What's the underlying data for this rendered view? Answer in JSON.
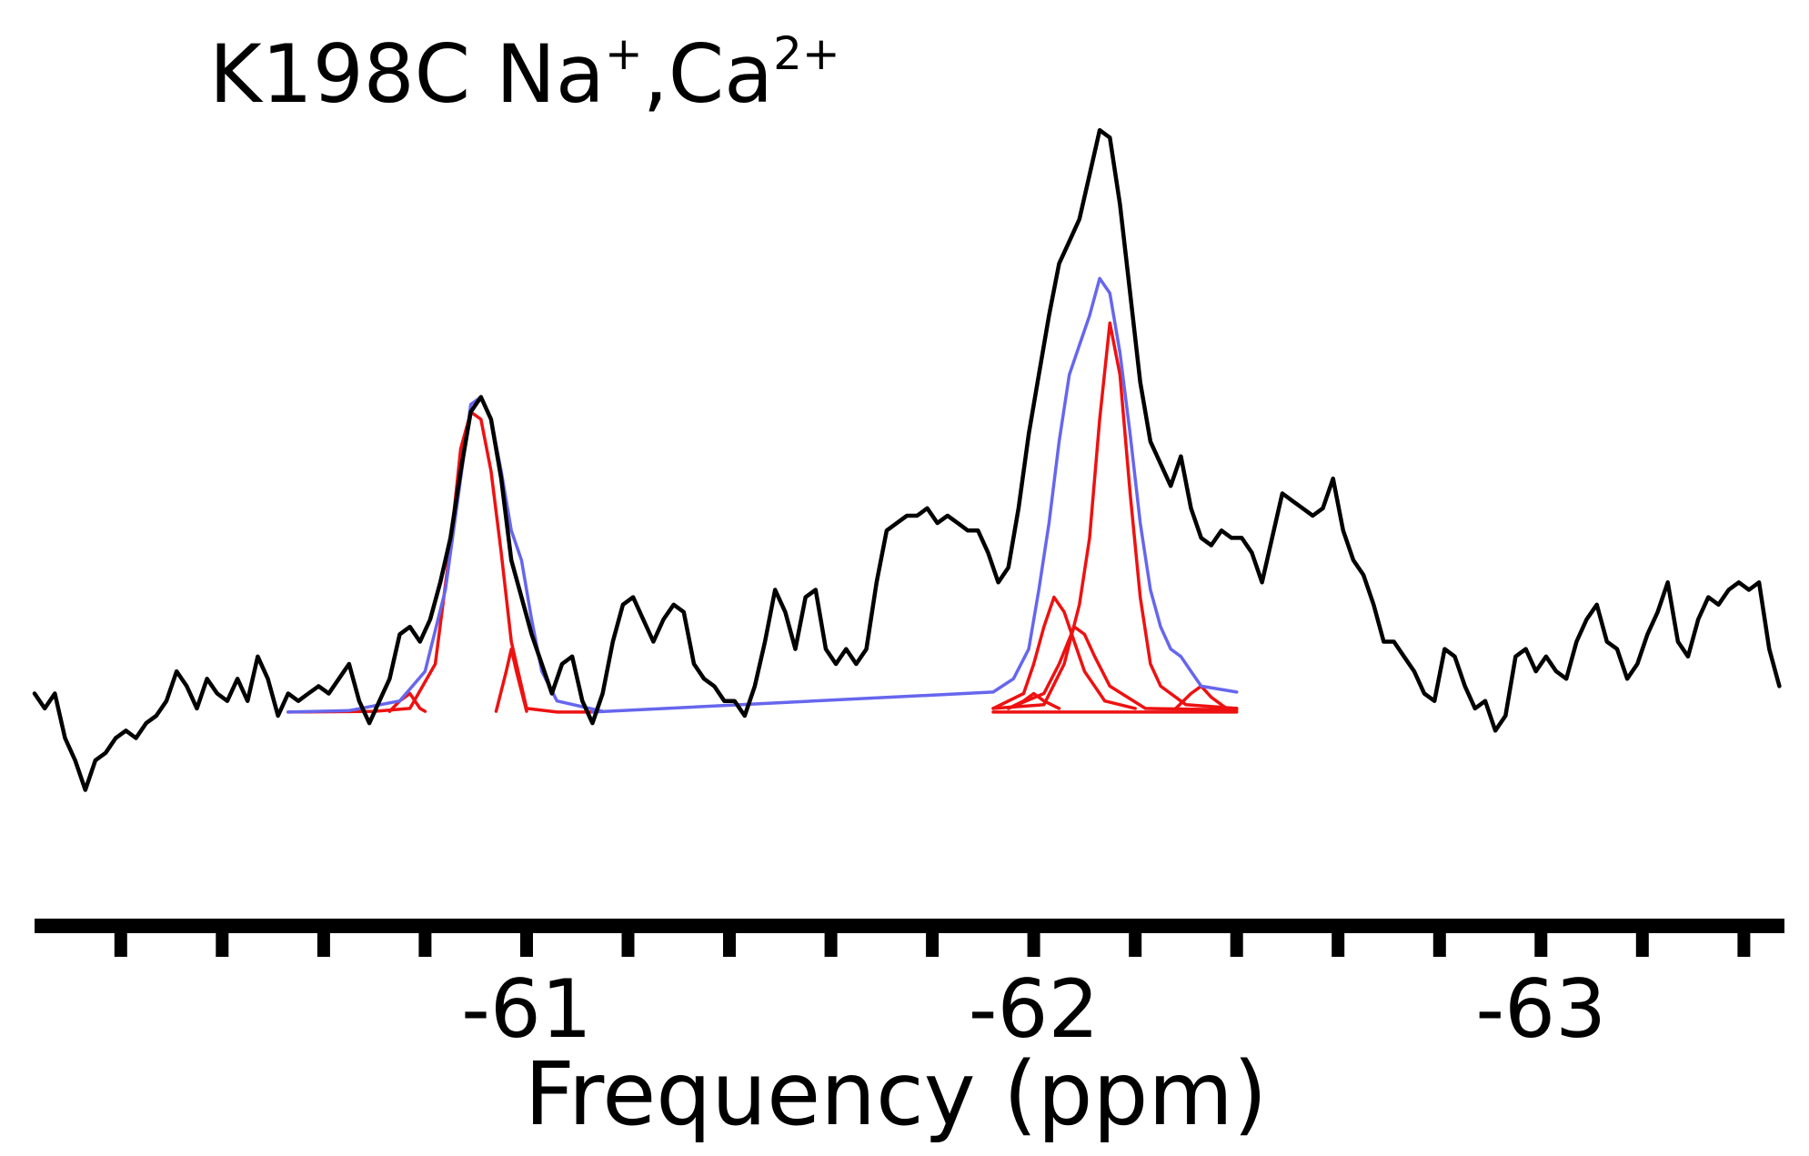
{
  "title": {
    "main": "K198C Na",
    "sup1": "+",
    "sep": ",Ca",
    "sup2": "2+"
  },
  "chart_data": {
    "type": "line",
    "xlabel": "Frequency (ppm)",
    "ylabel": "",
    "x_reversed": true,
    "xlim": [
      -60.03,
      -63.48
    ],
    "ylim": [
      0,
      1
    ],
    "x_ticks": [
      -61,
      -62,
      -63
    ],
    "x_tick_labels": [
      "-61",
      "-62",
      "-63"
    ],
    "x_minor_step": 0.2,
    "grid": false,
    "colors": {
      "spectrum": "#000000",
      "fit_sum": "#6666ee",
      "fit_component": "#ee1111"
    },
    "series": [
      {
        "role": "spectrum",
        "points": [
          [
            -60.03,
            0.23
          ],
          [
            -60.05,
            0.21
          ],
          [
            -60.07,
            0.23
          ],
          [
            -60.09,
            0.17
          ],
          [
            -60.11,
            0.14
          ],
          [
            -60.13,
            0.1
          ],
          [
            -60.15,
            0.14
          ],
          [
            -60.17,
            0.15
          ],
          [
            -60.19,
            0.17
          ],
          [
            -60.21,
            0.18
          ],
          [
            -60.23,
            0.17
          ],
          [
            -60.25,
            0.19
          ],
          [
            -60.27,
            0.2
          ],
          [
            -60.29,
            0.22
          ],
          [
            -60.31,
            0.26
          ],
          [
            -60.33,
            0.24
          ],
          [
            -60.35,
            0.21
          ],
          [
            -60.37,
            0.25
          ],
          [
            -60.39,
            0.23
          ],
          [
            -60.41,
            0.22
          ],
          [
            -60.43,
            0.25
          ],
          [
            -60.45,
            0.22
          ],
          [
            -60.47,
            0.28
          ],
          [
            -60.49,
            0.25
          ],
          [
            -60.51,
            0.2
          ],
          [
            -60.53,
            0.23
          ],
          [
            -60.55,
            0.22
          ],
          [
            -60.57,
            0.23
          ],
          [
            -60.59,
            0.24
          ],
          [
            -60.61,
            0.23
          ],
          [
            -60.63,
            0.25
          ],
          [
            -60.65,
            0.27
          ],
          [
            -60.67,
            0.22
          ],
          [
            -60.69,
            0.19
          ],
          [
            -60.71,
            0.22
          ],
          [
            -60.73,
            0.25
          ],
          [
            -60.75,
            0.31
          ],
          [
            -60.77,
            0.32
          ],
          [
            -60.79,
            0.3
          ],
          [
            -60.81,
            0.33
          ],
          [
            -60.83,
            0.38
          ],
          [
            -60.85,
            0.44
          ],
          [
            -60.87,
            0.53
          ],
          [
            -60.89,
            0.61
          ],
          [
            -60.91,
            0.63
          ],
          [
            -60.93,
            0.6
          ],
          [
            -60.95,
            0.52
          ],
          [
            -60.97,
            0.41
          ],
          [
            -60.99,
            0.36
          ],
          [
            -61.01,
            0.31
          ],
          [
            -61.03,
            0.27
          ],
          [
            -61.05,
            0.23
          ],
          [
            -61.07,
            0.27
          ],
          [
            -61.09,
            0.28
          ],
          [
            -61.11,
            0.22
          ],
          [
            -61.13,
            0.19
          ],
          [
            -61.15,
            0.23
          ],
          [
            -61.17,
            0.3
          ],
          [
            -61.19,
            0.35
          ],
          [
            -61.21,
            0.36
          ],
          [
            -61.23,
            0.33
          ],
          [
            -61.25,
            0.3
          ],
          [
            -61.27,
            0.33
          ],
          [
            -61.29,
            0.35
          ],
          [
            -61.31,
            0.34
          ],
          [
            -61.33,
            0.27
          ],
          [
            -61.35,
            0.25
          ],
          [
            -61.37,
            0.24
          ],
          [
            -61.39,
            0.22
          ],
          [
            -61.41,
            0.22
          ],
          [
            -61.43,
            0.2
          ],
          [
            -61.45,
            0.24
          ],
          [
            -61.47,
            0.3
          ],
          [
            -61.49,
            0.37
          ],
          [
            -61.51,
            0.34
          ],
          [
            -61.53,
            0.29
          ],
          [
            -61.55,
            0.36
          ],
          [
            -61.57,
            0.37
          ],
          [
            -61.59,
            0.29
          ],
          [
            -61.61,
            0.27
          ],
          [
            -61.63,
            0.29
          ],
          [
            -61.65,
            0.27
          ],
          [
            -61.67,
            0.29
          ],
          [
            -61.69,
            0.38
          ],
          [
            -61.71,
            0.45
          ],
          [
            -61.73,
            0.46
          ],
          [
            -61.75,
            0.47
          ],
          [
            -61.77,
            0.47
          ],
          [
            -61.79,
            0.48
          ],
          [
            -61.81,
            0.46
          ],
          [
            -61.83,
            0.47
          ],
          [
            -61.85,
            0.46
          ],
          [
            -61.87,
            0.45
          ],
          [
            -61.89,
            0.45
          ],
          [
            -61.91,
            0.42
          ],
          [
            -61.93,
            0.38
          ],
          [
            -61.95,
            0.4
          ],
          [
            -61.97,
            0.48
          ],
          [
            -61.99,
            0.58
          ],
          [
            -62.01,
            0.66
          ],
          [
            -62.03,
            0.74
          ],
          [
            -62.05,
            0.81
          ],
          [
            -62.07,
            0.84
          ],
          [
            -62.09,
            0.87
          ],
          [
            -62.11,
            0.93
          ],
          [
            -62.13,
            0.99
          ],
          [
            -62.15,
            0.98
          ],
          [
            -62.17,
            0.89
          ],
          [
            -62.19,
            0.77
          ],
          [
            -62.21,
            0.65
          ],
          [
            -62.23,
            0.57
          ],
          [
            -62.25,
            0.54
          ],
          [
            -62.27,
            0.51
          ],
          [
            -62.29,
            0.55
          ],
          [
            -62.31,
            0.48
          ],
          [
            -62.33,
            0.44
          ],
          [
            -62.35,
            0.43
          ],
          [
            -62.37,
            0.45
          ],
          [
            -62.39,
            0.44
          ],
          [
            -62.41,
            0.44
          ],
          [
            -62.43,
            0.42
          ],
          [
            -62.45,
            0.38
          ],
          [
            -62.47,
            0.44
          ],
          [
            -62.49,
            0.5
          ],
          [
            -62.51,
            0.49
          ],
          [
            -62.53,
            0.48
          ],
          [
            -62.55,
            0.47
          ],
          [
            -62.57,
            0.48
          ],
          [
            -62.59,
            0.52
          ],
          [
            -62.61,
            0.45
          ],
          [
            -62.63,
            0.41
          ],
          [
            -62.65,
            0.39
          ],
          [
            -62.67,
            0.35
          ],
          [
            -62.69,
            0.3
          ],
          [
            -62.71,
            0.3
          ],
          [
            -62.73,
            0.28
          ],
          [
            -62.75,
            0.26
          ],
          [
            -62.77,
            0.23
          ],
          [
            -62.79,
            0.22
          ],
          [
            -62.81,
            0.29
          ],
          [
            -62.83,
            0.28
          ],
          [
            -62.85,
            0.24
          ],
          [
            -62.87,
            0.21
          ],
          [
            -62.89,
            0.22
          ],
          [
            -62.91,
            0.18
          ],
          [
            -62.93,
            0.2
          ],
          [
            -62.95,
            0.28
          ],
          [
            -62.97,
            0.29
          ],
          [
            -62.99,
            0.26
          ],
          [
            -63.01,
            0.28
          ],
          [
            -63.03,
            0.26
          ],
          [
            -63.05,
            0.25
          ],
          [
            -63.07,
            0.3
          ],
          [
            -63.09,
            0.33
          ],
          [
            -63.11,
            0.35
          ],
          [
            -63.13,
            0.3
          ],
          [
            -63.15,
            0.29
          ],
          [
            -63.17,
            0.25
          ],
          [
            -63.19,
            0.27
          ],
          [
            -63.21,
            0.31
          ],
          [
            -63.23,
            0.34
          ],
          [
            -63.25,
            0.38
          ],
          [
            -63.27,
            0.3
          ],
          [
            -63.29,
            0.28
          ],
          [
            -63.31,
            0.33
          ],
          [
            -63.33,
            0.36
          ],
          [
            -63.35,
            0.35
          ],
          [
            -63.37,
            0.37
          ],
          [
            -63.39,
            0.38
          ],
          [
            -63.41,
            0.37
          ],
          [
            -63.43,
            0.38
          ],
          [
            -63.45,
            0.29
          ],
          [
            -63.47,
            0.24
          ]
        ]
      },
      {
        "role": "fit_sum",
        "points": [
          [
            -60.53,
            0.205
          ],
          [
            -60.65,
            0.207
          ],
          [
            -60.75,
            0.22
          ],
          [
            -60.8,
            0.26
          ],
          [
            -60.84,
            0.37
          ],
          [
            -60.87,
            0.52
          ],
          [
            -60.89,
            0.62
          ],
          [
            -60.91,
            0.63
          ],
          [
            -60.93,
            0.6
          ],
          [
            -60.95,
            0.53
          ],
          [
            -60.97,
            0.45
          ],
          [
            -60.99,
            0.41
          ],
          [
            -61.01,
            0.33
          ],
          [
            -61.03,
            0.26
          ],
          [
            -61.06,
            0.22
          ],
          [
            -61.15,
            0.206
          ],
          [
            -61.13,
            0.205
          ],
          [
            -61.92,
            0.232
          ],
          [
            -61.96,
            0.25
          ],
          [
            -61.99,
            0.29
          ],
          [
            -62.01,
            0.37
          ],
          [
            -62.03,
            0.46
          ],
          [
            -62.05,
            0.57
          ],
          [
            -62.07,
            0.66
          ],
          [
            -62.09,
            0.7
          ],
          [
            -62.11,
            0.74
          ],
          [
            -62.13,
            0.79
          ],
          [
            -62.15,
            0.77
          ],
          [
            -62.17,
            0.69
          ],
          [
            -62.19,
            0.58
          ],
          [
            -62.21,
            0.46
          ],
          [
            -62.23,
            0.37
          ],
          [
            -62.25,
            0.32
          ],
          [
            -62.27,
            0.29
          ],
          [
            -62.29,
            0.28
          ],
          [
            -62.31,
            0.26
          ],
          [
            -62.33,
            0.24
          ],
          [
            -62.4,
            0.232
          ]
        ]
      },
      {
        "role": "fit_component",
        "points": [
          [
            -60.53,
            0.205
          ],
          [
            -60.7,
            0.206
          ],
          [
            -60.77,
            0.21
          ],
          [
            -60.82,
            0.27
          ],
          [
            -60.85,
            0.43
          ],
          [
            -60.87,
            0.56
          ],
          [
            -60.89,
            0.61
          ],
          [
            -60.91,
            0.6
          ],
          [
            -60.93,
            0.53
          ],
          [
            -60.95,
            0.42
          ],
          [
            -60.97,
            0.3
          ],
          [
            -61.0,
            0.21
          ],
          [
            -61.06,
            0.205
          ],
          [
            -61.13,
            0.205
          ]
        ]
      },
      {
        "role": "fit_component",
        "points": [
          [
            -60.73,
            0.206
          ],
          [
            -60.75,
            0.22
          ],
          [
            -60.77,
            0.23
          ],
          [
            -60.79,
            0.21
          ],
          [
            -60.8,
            0.206
          ]
        ]
      },
      {
        "role": "fit_component",
        "points": [
          [
            -60.94,
            0.206
          ],
          [
            -60.96,
            0.26
          ],
          [
            -60.97,
            0.29
          ],
          [
            -60.98,
            0.26
          ],
          [
            -61.0,
            0.206
          ]
        ]
      },
      {
        "role": "fit_component",
        "points": [
          [
            -61.92,
            0.21
          ],
          [
            -62.02,
            0.215
          ],
          [
            -62.06,
            0.27
          ],
          [
            -62.09,
            0.35
          ],
          [
            -62.11,
            0.44
          ],
          [
            -62.13,
            0.6
          ],
          [
            -62.15,
            0.73
          ],
          [
            -62.17,
            0.66
          ],
          [
            -62.19,
            0.5
          ],
          [
            -62.21,
            0.36
          ],
          [
            -62.23,
            0.27
          ],
          [
            -62.25,
            0.24
          ],
          [
            -62.3,
            0.215
          ],
          [
            -62.4,
            0.21
          ]
        ]
      },
      {
        "role": "fit_component",
        "points": [
          [
            -61.92,
            0.21
          ],
          [
            -61.98,
            0.23
          ],
          [
            -62.0,
            0.27
          ],
          [
            -62.02,
            0.32
          ],
          [
            -62.04,
            0.36
          ],
          [
            -62.06,
            0.34
          ],
          [
            -62.08,
            0.3
          ],
          [
            -62.1,
            0.26
          ],
          [
            -62.14,
            0.22
          ],
          [
            -62.2,
            0.21
          ]
        ]
      },
      {
        "role": "fit_component",
        "points": [
          [
            -61.95,
            0.21
          ],
          [
            -62.02,
            0.23
          ],
          [
            -62.05,
            0.27
          ],
          [
            -62.08,
            0.32
          ],
          [
            -62.1,
            0.31
          ],
          [
            -62.12,
            0.28
          ],
          [
            -62.15,
            0.24
          ],
          [
            -62.22,
            0.21
          ],
          [
            -62.4,
            0.208
          ]
        ]
      },
      {
        "role": "fit_component",
        "points": [
          [
            -61.95,
            0.21
          ],
          [
            -61.98,
            0.22
          ],
          [
            -62.0,
            0.23
          ],
          [
            -62.02,
            0.22
          ],
          [
            -62.05,
            0.21
          ]
        ]
      },
      {
        "role": "fit_component",
        "points": [
          [
            -62.28,
            0.21
          ],
          [
            -62.31,
            0.23
          ],
          [
            -62.33,
            0.24
          ],
          [
            -62.35,
            0.225
          ],
          [
            -62.38,
            0.21
          ],
          [
            -62.4,
            0.21
          ]
        ]
      },
      {
        "role": "fit_component",
        "points": [
          [
            -61.92,
            0.205
          ],
          [
            -62.4,
            0.205
          ]
        ]
      }
    ]
  }
}
